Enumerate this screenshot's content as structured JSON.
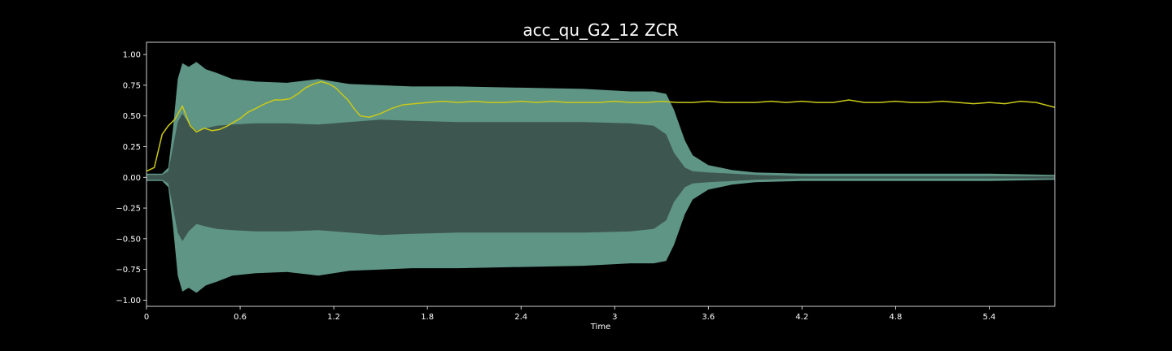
{
  "chart_data": {
    "type": "line",
    "title": "acc_qu_G2_12 ZCR",
    "xlabel": "Time",
    "ylabel": "",
    "xlim": [
      0,
      5.82
    ],
    "ylim": [
      -1.05,
      1.1
    ],
    "x_ticks": [
      {
        "value": 0,
        "label": "0"
      },
      {
        "value": 0.6,
        "label": "0.6"
      },
      {
        "value": 1.2,
        "label": "1.2"
      },
      {
        "value": 1.8,
        "label": "1.8"
      },
      {
        "value": 2.4,
        "label": "2.4"
      },
      {
        "value": 3.0,
        "label": "3"
      },
      {
        "value": 3.6,
        "label": "3.6"
      },
      {
        "value": 4.2,
        "label": "4.2"
      },
      {
        "value": 4.8,
        "label": "4.8"
      },
      {
        "value": 5.4,
        "label": "5.4"
      }
    ],
    "y_ticks": [
      {
        "value": 1.0,
        "label": "1.00"
      },
      {
        "value": 0.75,
        "label": "0.75"
      },
      {
        "value": 0.5,
        "label": "0.50"
      },
      {
        "value": 0.25,
        "label": "0.25"
      },
      {
        "value": 0.0,
        "label": "0.00"
      },
      {
        "value": -0.25,
        "label": "−0.25"
      },
      {
        "value": -0.5,
        "label": "−0.50"
      },
      {
        "value": -0.75,
        "label": "−0.75"
      },
      {
        "value": -1.0,
        "label": "−1.00"
      }
    ],
    "grid": false,
    "colors": {
      "background": "#000000",
      "waveform_outer": "#5f9585",
      "waveform_inner": "#3e5650",
      "zcr_line": "#c9c918",
      "axes": "#ffffff"
    },
    "waveform_envelope": {
      "x": [
        0,
        0.1,
        0.14,
        0.17,
        0.2,
        0.23,
        0.27,
        0.32,
        0.38,
        0.45,
        0.55,
        0.7,
        0.9,
        1.1,
        1.3,
        1.5,
        1.7,
        2.0,
        2.4,
        2.8,
        3.1,
        3.25,
        3.33,
        3.38,
        3.45,
        3.5,
        3.6,
        3.75,
        3.9,
        4.2,
        4.6,
        5.0,
        5.4,
        5.82
      ],
      "outer": [
        0.03,
        0.03,
        0.08,
        0.4,
        0.8,
        0.93,
        0.9,
        0.94,
        0.88,
        0.85,
        0.8,
        0.78,
        0.77,
        0.8,
        0.76,
        0.75,
        0.74,
        0.74,
        0.73,
        0.72,
        0.7,
        0.7,
        0.68,
        0.55,
        0.3,
        0.18,
        0.1,
        0.06,
        0.04,
        0.03,
        0.03,
        0.03,
        0.03,
        0.02
      ],
      "inner": [
        0.02,
        0.02,
        0.05,
        0.25,
        0.45,
        0.52,
        0.44,
        0.38,
        0.4,
        0.42,
        0.43,
        0.44,
        0.44,
        0.43,
        0.45,
        0.47,
        0.46,
        0.45,
        0.45,
        0.45,
        0.44,
        0.42,
        0.35,
        0.2,
        0.08,
        0.05,
        0.04,
        0.03,
        0.02,
        0.01,
        0.01,
        0.01,
        0.01,
        0.01
      ]
    },
    "series": [
      {
        "color": "#c9c918",
        "x": [
          0,
          0.05,
          0.1,
          0.14,
          0.18,
          0.23,
          0.28,
          0.32,
          0.37,
          0.42,
          0.47,
          0.52,
          0.56,
          0.6,
          0.65,
          0.7,
          0.76,
          0.82,
          0.87,
          0.92,
          0.97,
          1.02,
          1.07,
          1.12,
          1.17,
          1.21,
          1.25,
          1.29,
          1.33,
          1.37,
          1.43,
          1.5,
          1.57,
          1.64,
          1.72,
          1.8,
          1.9,
          2.0,
          2.1,
          2.2,
          2.3,
          2.4,
          2.5,
          2.6,
          2.7,
          2.8,
          2.9,
          3.0,
          3.1,
          3.2,
          3.3,
          3.4,
          3.5,
          3.6,
          3.7,
          3.8,
          3.9,
          4.0,
          4.1,
          4.2,
          4.3,
          4.4,
          4.5,
          4.6,
          4.7,
          4.8,
          4.9,
          5.0,
          5.1,
          5.2,
          5.3,
          5.4,
          5.5,
          5.6,
          5.7,
          5.82
        ],
        "values": [
          0.05,
          0.08,
          0.35,
          0.42,
          0.47,
          0.58,
          0.42,
          0.37,
          0.4,
          0.38,
          0.39,
          0.42,
          0.45,
          0.48,
          0.53,
          0.56,
          0.6,
          0.63,
          0.63,
          0.64,
          0.68,
          0.73,
          0.76,
          0.78,
          0.76,
          0.73,
          0.68,
          0.63,
          0.56,
          0.5,
          0.49,
          0.52,
          0.56,
          0.59,
          0.6,
          0.61,
          0.62,
          0.61,
          0.62,
          0.61,
          0.61,
          0.62,
          0.61,
          0.62,
          0.61,
          0.61,
          0.61,
          0.62,
          0.61,
          0.61,
          0.62,
          0.61,
          0.61,
          0.62,
          0.61,
          0.61,
          0.61,
          0.62,
          0.61,
          0.62,
          0.61,
          0.61,
          0.63,
          0.61,
          0.61,
          0.62,
          0.61,
          0.61,
          0.62,
          0.61,
          0.6,
          0.61,
          0.6,
          0.62,
          0.61,
          0.57
        ]
      }
    ]
  }
}
